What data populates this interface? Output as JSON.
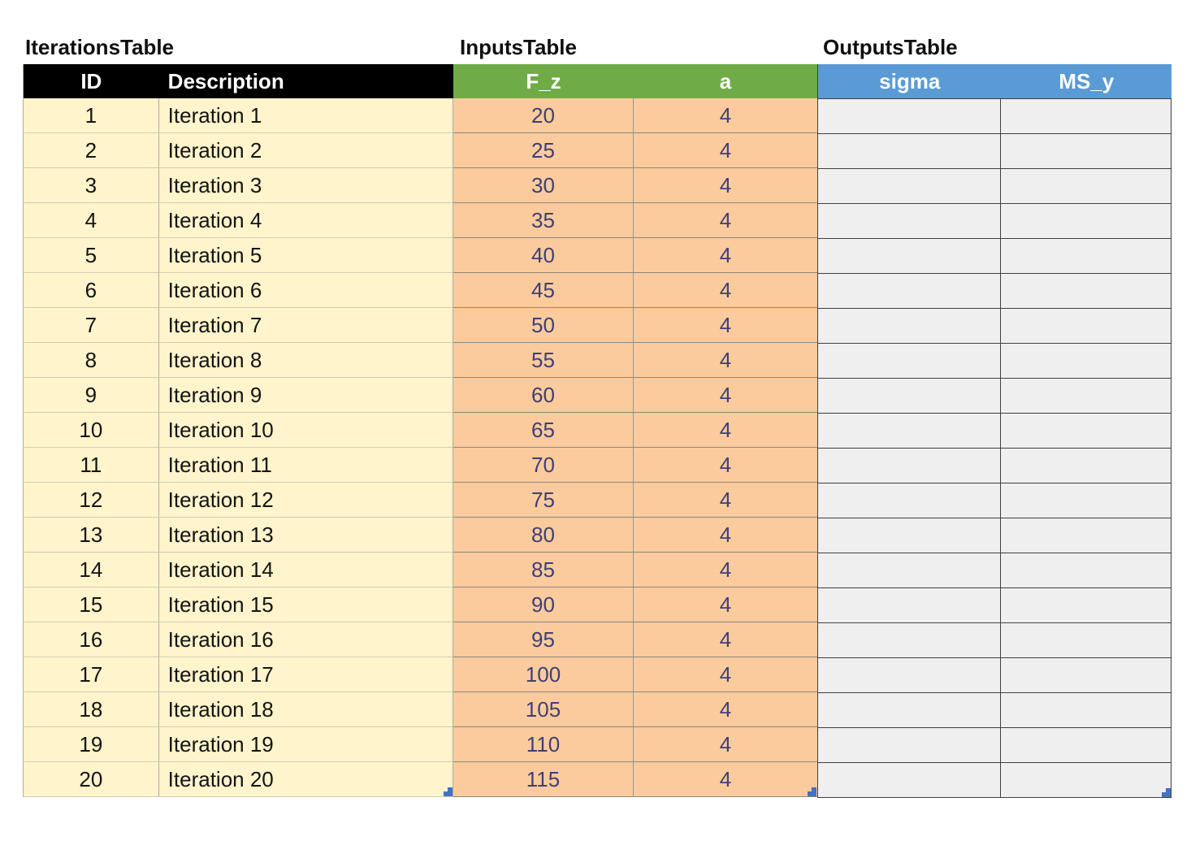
{
  "colors": {
    "iterations_header": "#000000",
    "inputs_header": "#6FAC47",
    "outputs_header": "#5B9BD5",
    "iterations_body": "#FFF4CB",
    "inputs_body": "#FBCB9D",
    "outputs_body": "#EFEFEF",
    "iterations_text": "#141414",
    "inputs_text": "#3F3F76",
    "header_text": "#FFFFFF",
    "handle": "#4472C4"
  },
  "tables": [
    {
      "title": "IterationsTable",
      "columns": [
        {
          "label": "ID",
          "key": "id",
          "align": "center"
        },
        {
          "label": "Description",
          "key": "description",
          "align": "left"
        }
      ],
      "rows": [
        [
          "1",
          "Iteration 1"
        ],
        [
          "2",
          "Iteration 2"
        ],
        [
          "3",
          "Iteration 3"
        ],
        [
          "4",
          "Iteration 4"
        ],
        [
          "5",
          "Iteration 5"
        ],
        [
          "6",
          "Iteration 6"
        ],
        [
          "7",
          "Iteration 7"
        ],
        [
          "8",
          "Iteration 8"
        ],
        [
          "9",
          "Iteration 9"
        ],
        [
          "10",
          "Iteration 10"
        ],
        [
          "11",
          "Iteration 11"
        ],
        [
          "12",
          "Iteration 12"
        ],
        [
          "13",
          "Iteration 13"
        ],
        [
          "14",
          "Iteration 14"
        ],
        [
          "15",
          "Iteration 15"
        ],
        [
          "16",
          "Iteration 16"
        ],
        [
          "17",
          "Iteration 17"
        ],
        [
          "18",
          "Iteration 18"
        ],
        [
          "19",
          "Iteration 19"
        ],
        [
          "20",
          "Iteration 20"
        ]
      ]
    },
    {
      "title": "InputsTable",
      "columns": [
        {
          "label": "F_z",
          "key": "f-z",
          "align": "center"
        },
        {
          "label": "a",
          "key": "a",
          "align": "center"
        }
      ],
      "rows": [
        [
          "20",
          "4"
        ],
        [
          "25",
          "4"
        ],
        [
          "30",
          "4"
        ],
        [
          "35",
          "4"
        ],
        [
          "40",
          "4"
        ],
        [
          "45",
          "4"
        ],
        [
          "50",
          "4"
        ],
        [
          "55",
          "4"
        ],
        [
          "60",
          "4"
        ],
        [
          "65",
          "4"
        ],
        [
          "70",
          "4"
        ],
        [
          "75",
          "4"
        ],
        [
          "80",
          "4"
        ],
        [
          "85",
          "4"
        ],
        [
          "90",
          "4"
        ],
        [
          "95",
          "4"
        ],
        [
          "100",
          "4"
        ],
        [
          "105",
          "4"
        ],
        [
          "110",
          "4"
        ],
        [
          "115",
          "4"
        ]
      ]
    },
    {
      "title": "OutputsTable",
      "columns": [
        {
          "label": "sigma",
          "key": "sigma",
          "align": "center"
        },
        {
          "label": "MS_y",
          "key": "ms-y",
          "align": "center"
        }
      ],
      "rows": [
        [
          "",
          ""
        ],
        [
          "",
          ""
        ],
        [
          "",
          ""
        ],
        [
          "",
          ""
        ],
        [
          "",
          ""
        ],
        [
          "",
          ""
        ],
        [
          "",
          ""
        ],
        [
          "",
          ""
        ],
        [
          "",
          ""
        ],
        [
          "",
          ""
        ],
        [
          "",
          ""
        ],
        [
          "",
          ""
        ],
        [
          "",
          ""
        ],
        [
          "",
          ""
        ],
        [
          "",
          ""
        ],
        [
          "",
          ""
        ],
        [
          "",
          ""
        ],
        [
          "",
          ""
        ],
        [
          "",
          ""
        ],
        [
          "",
          ""
        ]
      ]
    }
  ]
}
